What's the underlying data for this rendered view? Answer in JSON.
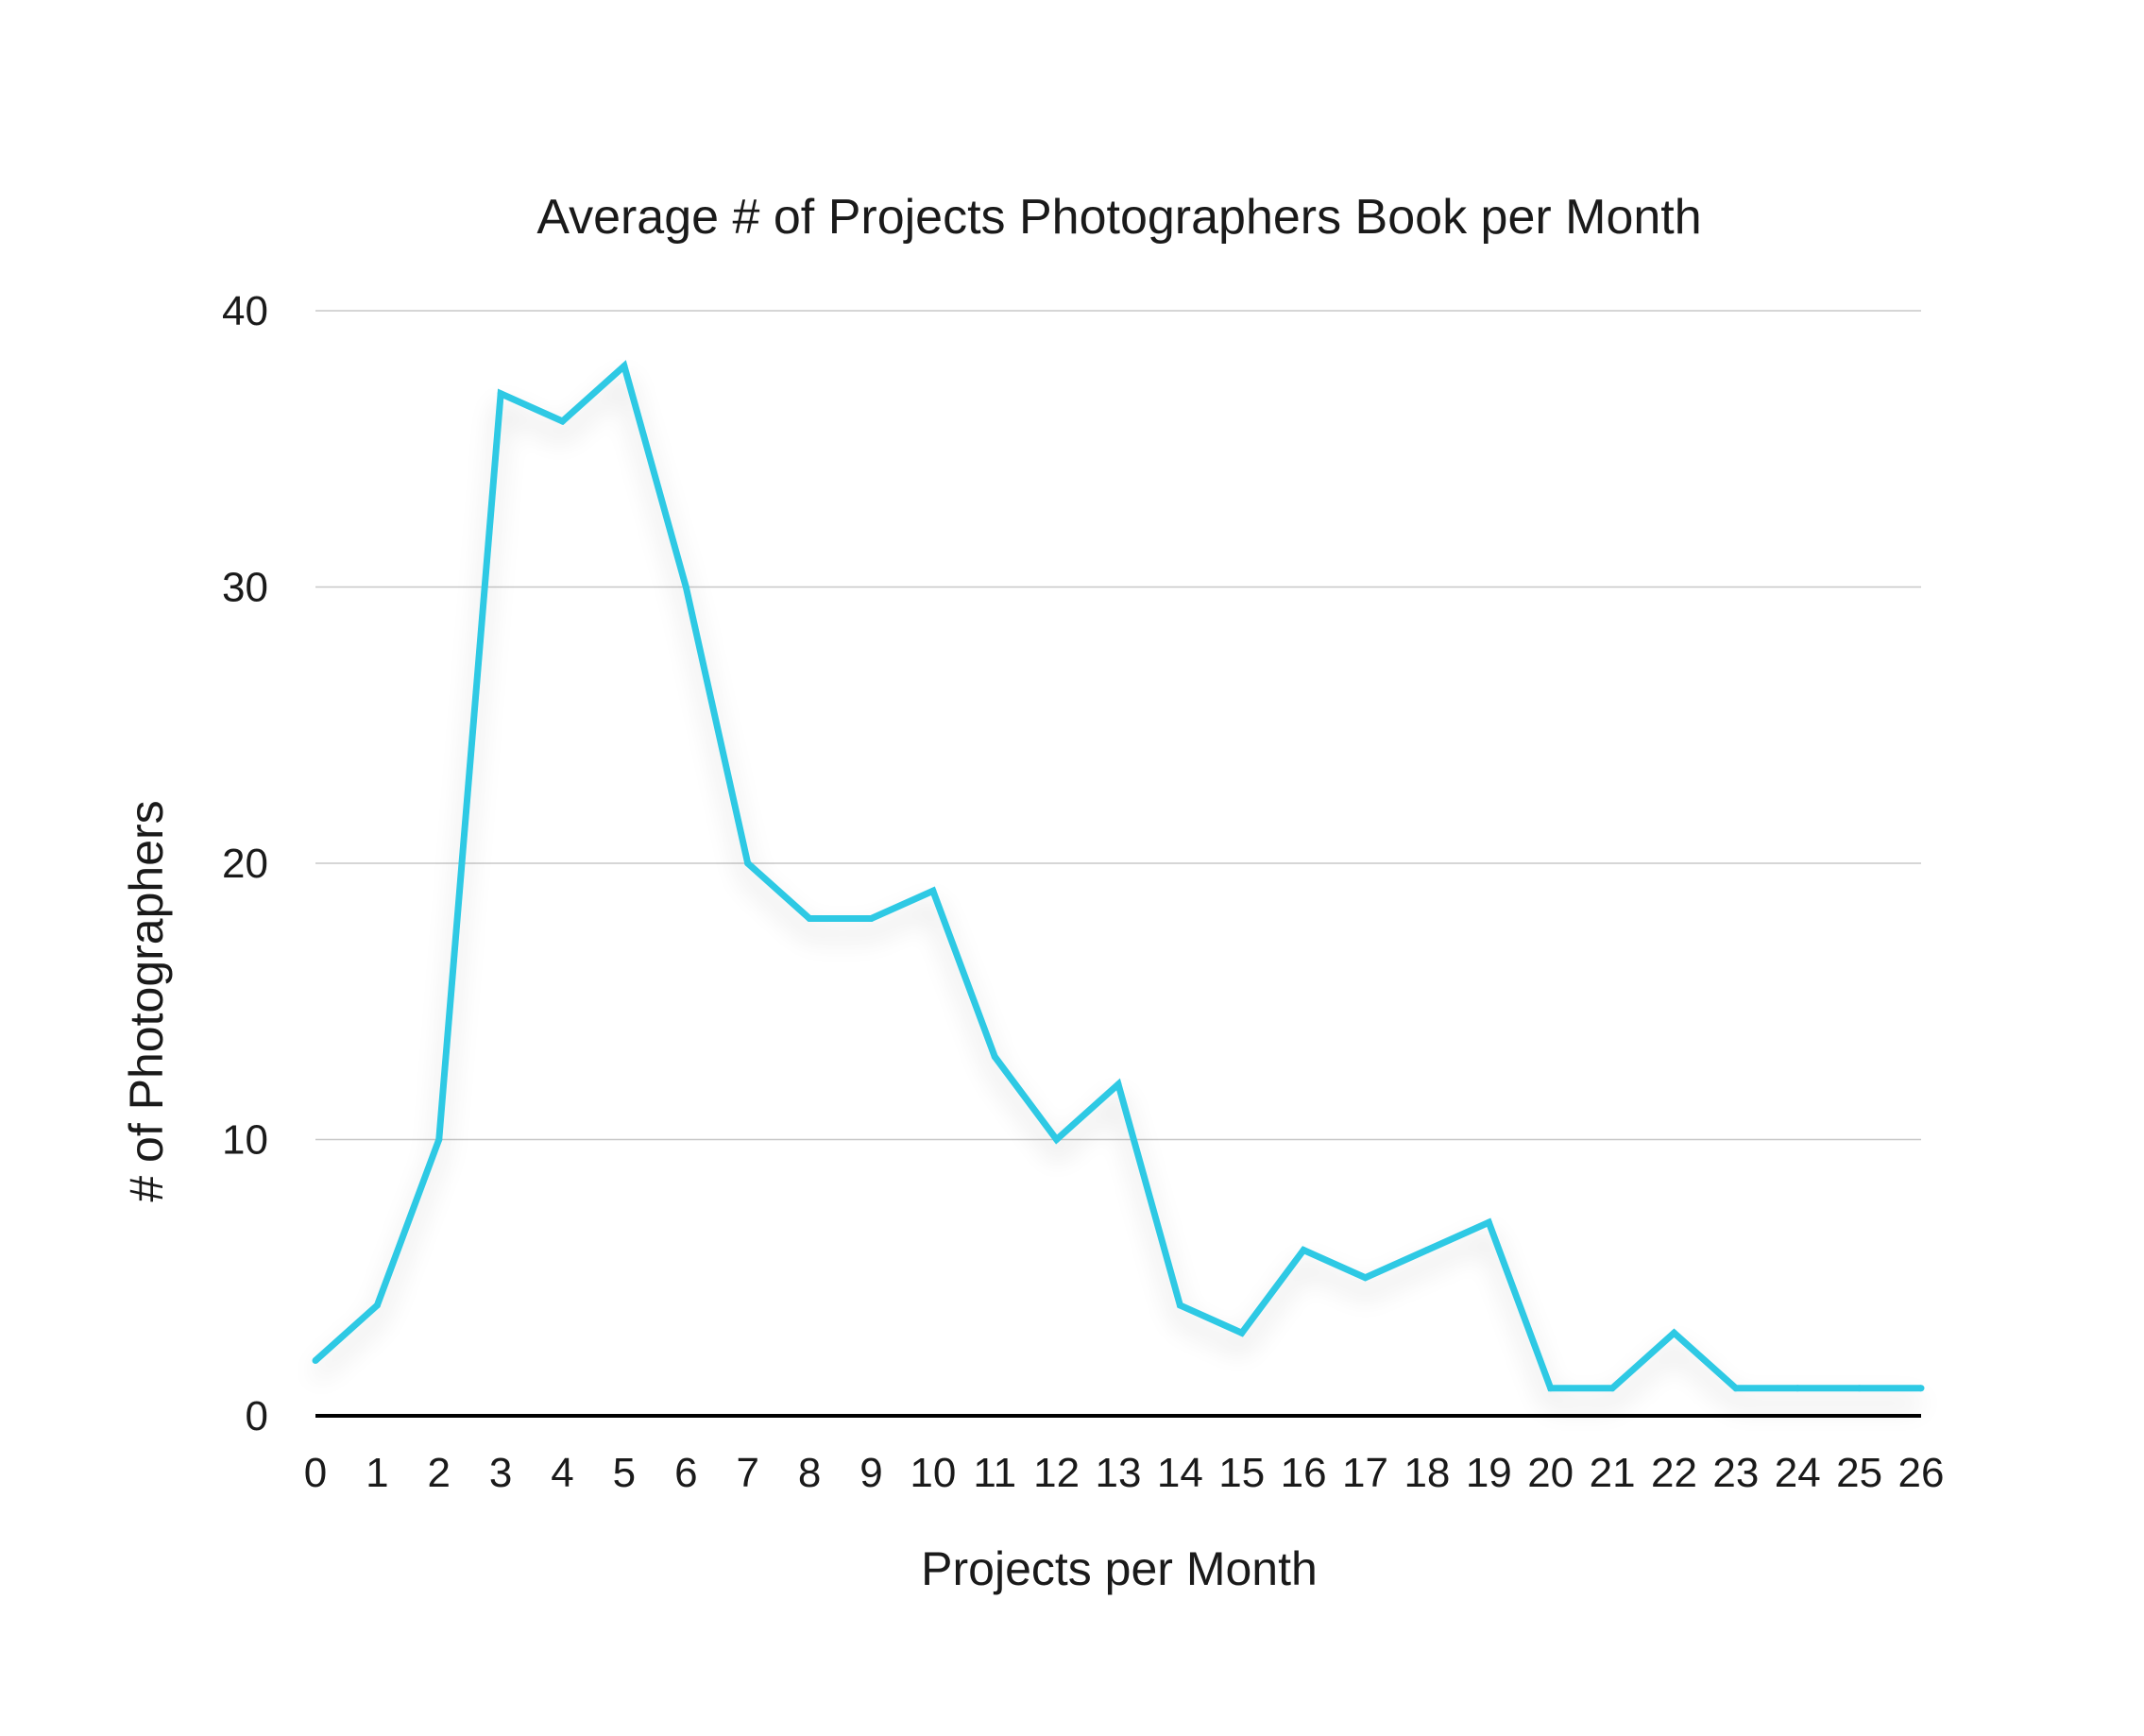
{
  "chart_data": {
    "type": "line",
    "title": "Average # of Projects Photographers Book per Month",
    "xlabel": "Projects per Month",
    "ylabel": "# of Photographers",
    "x": [
      0,
      1,
      2,
      3,
      4,
      5,
      6,
      7,
      8,
      9,
      10,
      11,
      12,
      13,
      14,
      15,
      16,
      17,
      18,
      19,
      20,
      21,
      22,
      23,
      24,
      25,
      26
    ],
    "series": [
      {
        "values": [
          2,
          4,
          10,
          37,
          36,
          38,
          30,
          20,
          18,
          18,
          19,
          13,
          10,
          12,
          4,
          3,
          6,
          5,
          6,
          7,
          1,
          1,
          3,
          1,
          1,
          1,
          1
        ],
        "color": "#2ec9e4"
      }
    ],
    "xlim": [
      0,
      26
    ],
    "ylim": [
      0,
      40
    ],
    "yticks": [
      0,
      10,
      20,
      30,
      40
    ],
    "grid": true,
    "legend": "none"
  }
}
